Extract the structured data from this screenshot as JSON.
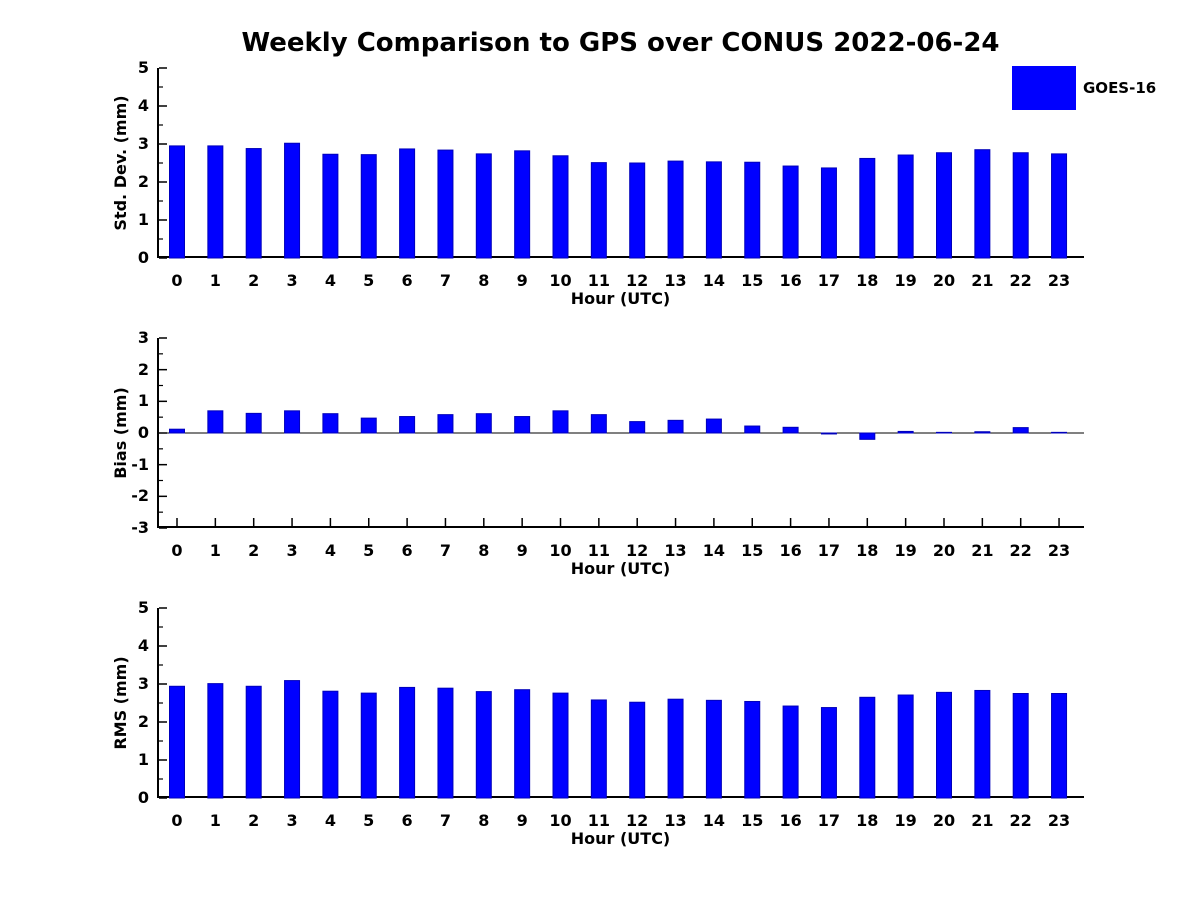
{
  "title": "Weekly Comparison to GPS over CONUS 2022-06-24",
  "legend": {
    "label": "GOES-16",
    "color": "#0000ff"
  },
  "xlabel": "Hour (UTC)",
  "colors": {
    "bar": "#0000ff",
    "bar_edge": "#0000bb",
    "axis": "#000000",
    "text": "#000000",
    "background": "#ffffff"
  },
  "chart_data": [
    {
      "type": "bar",
      "name": "std_dev",
      "ylabel": "Std. Dev. (mm)",
      "xlabel": "Hour (UTC)",
      "categories": [
        0,
        1,
        2,
        3,
        4,
        5,
        6,
        7,
        8,
        9,
        10,
        11,
        12,
        13,
        14,
        15,
        16,
        17,
        18,
        19,
        20,
        21,
        22,
        23
      ],
      "values": [
        2.95,
        2.95,
        2.88,
        3.02,
        2.73,
        2.72,
        2.87,
        2.84,
        2.74,
        2.82,
        2.69,
        2.51,
        2.5,
        2.55,
        2.53,
        2.52,
        2.42,
        2.37,
        2.62,
        2.71,
        2.77,
        2.85,
        2.77,
        2.74
      ],
      "ylim": [
        0,
        5
      ],
      "yticks": [
        0,
        1,
        2,
        3,
        4,
        5
      ],
      "grid": false,
      "legend_entry": "GOES-16",
      "legend_position": "top-right"
    },
    {
      "type": "bar",
      "name": "bias",
      "ylabel": "Bias (mm)",
      "xlabel": "Hour (UTC)",
      "categories": [
        0,
        1,
        2,
        3,
        4,
        5,
        6,
        7,
        8,
        9,
        10,
        11,
        12,
        13,
        14,
        15,
        16,
        17,
        18,
        19,
        20,
        21,
        22,
        23
      ],
      "values": [
        0.12,
        0.7,
        0.62,
        0.7,
        0.61,
        0.47,
        0.52,
        0.58,
        0.61,
        0.52,
        0.7,
        0.58,
        0.36,
        0.4,
        0.44,
        0.22,
        0.18,
        -0.03,
        -0.2,
        0.05,
        0.02,
        0.04,
        0.17,
        0.02
      ],
      "ylim": [
        -3,
        3
      ],
      "yticks": [
        -3,
        -2,
        -1,
        0,
        1,
        2,
        3
      ],
      "zero_line": true,
      "grid": false
    },
    {
      "type": "bar",
      "name": "rms",
      "ylabel": "RMS (mm)",
      "xlabel": "Hour (UTC)",
      "categories": [
        0,
        1,
        2,
        3,
        4,
        5,
        6,
        7,
        8,
        9,
        10,
        11,
        12,
        13,
        14,
        15,
        16,
        17,
        18,
        19,
        20,
        21,
        22,
        23
      ],
      "values": [
        2.94,
        3.01,
        2.94,
        3.09,
        2.81,
        2.76,
        2.91,
        2.89,
        2.8,
        2.85,
        2.76,
        2.58,
        2.52,
        2.6,
        2.57,
        2.54,
        2.42,
        2.38,
        2.65,
        2.71,
        2.78,
        2.83,
        2.75,
        2.75
      ],
      "ylim": [
        0,
        5
      ],
      "yticks": [
        0,
        1,
        2,
        3,
        4,
        5
      ],
      "grid": false
    }
  ]
}
